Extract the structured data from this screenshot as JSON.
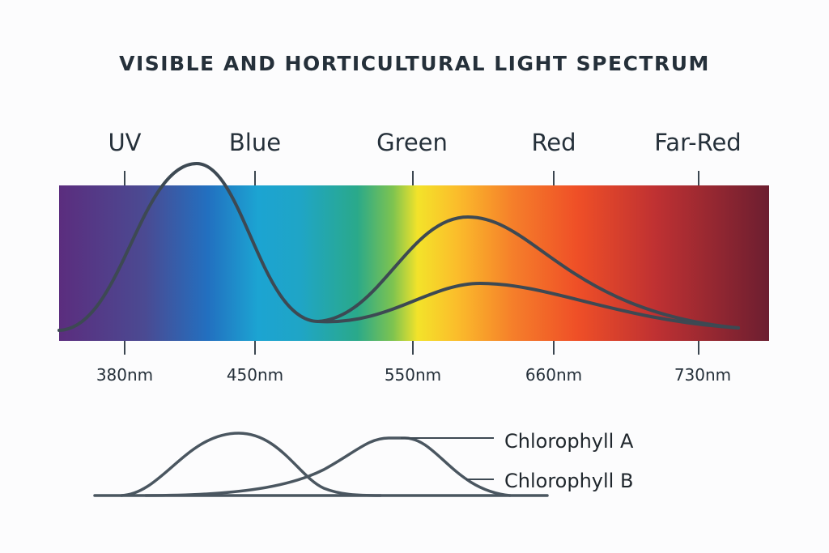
{
  "title": "VISIBLE AND HORTICULTURAL LIGHT SPECTRUM",
  "bands": [
    "UV",
    "Blue",
    "Green",
    "Red",
    "Far-Red"
  ],
  "wavelengths": [
    "380nm",
    "450nm",
    "550nm",
    "660nm",
    "730nm"
  ],
  "legend": {
    "chlorophyll_a": "Chlorophyll A",
    "chlorophyll_b": "Chlorophyll B"
  },
  "colors": {
    "curve": "#3d4953",
    "spectrum": [
      "#5b2d7e",
      "#2272c0",
      "#1ba3d0",
      "#2aa88a",
      "#f4e22a",
      "#f57f2a",
      "#ef4f26",
      "#6e1f30"
    ]
  }
}
